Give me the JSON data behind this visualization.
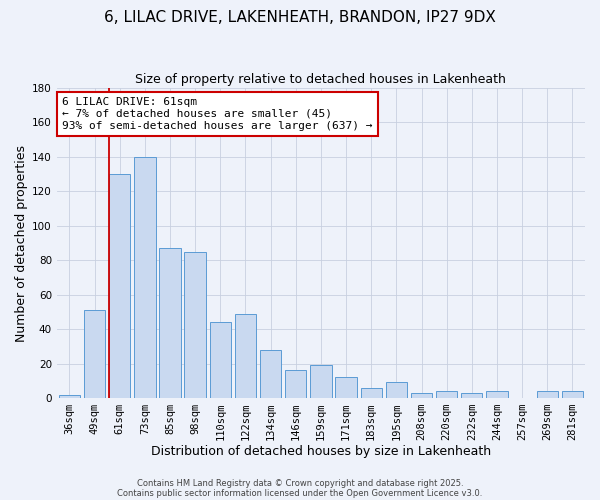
{
  "title": "6, LILAC DRIVE, LAKENHEATH, BRANDON, IP27 9DX",
  "subtitle": "Size of property relative to detached houses in Lakenheath",
  "xlabel": "Distribution of detached houses by size in Lakenheath",
  "ylabel": "Number of detached properties",
  "categories": [
    "36sqm",
    "49sqm",
    "61sqm",
    "73sqm",
    "85sqm",
    "98sqm",
    "110sqm",
    "122sqm",
    "134sqm",
    "146sqm",
    "159sqm",
    "171sqm",
    "183sqm",
    "195sqm",
    "208sqm",
    "220sqm",
    "232sqm",
    "244sqm",
    "257sqm",
    "269sqm",
    "281sqm"
  ],
  "values": [
    2,
    51,
    130,
    140,
    87,
    85,
    44,
    49,
    28,
    16,
    19,
    12,
    6,
    9,
    3,
    4,
    3,
    4,
    0,
    4,
    4
  ],
  "bar_color": "#c9d9f0",
  "bar_edge_color": "#5b9bd5",
  "highlight_index": 2,
  "highlight_line_color": "#cc0000",
  "ylim": [
    0,
    180
  ],
  "yticks": [
    0,
    20,
    40,
    60,
    80,
    100,
    120,
    140,
    160,
    180
  ],
  "annotation_title": "6 LILAC DRIVE: 61sqm",
  "annotation_line1": "← 7% of detached houses are smaller (45)",
  "annotation_line2": "93% of semi-detached houses are larger (637) →",
  "annotation_box_facecolor": "#ffffff",
  "annotation_box_edgecolor": "#cc0000",
  "footer1": "Contains HM Land Registry data © Crown copyright and database right 2025.",
  "footer2": "Contains public sector information licensed under the Open Government Licence v3.0.",
  "background_color": "#eef2fa",
  "grid_color": "#c8d0e0",
  "title_fontsize": 11,
  "subtitle_fontsize": 9,
  "axis_label_fontsize": 9,
  "tick_fontsize": 7.5,
  "annotation_fontsize": 8,
  "footer_fontsize": 6
}
